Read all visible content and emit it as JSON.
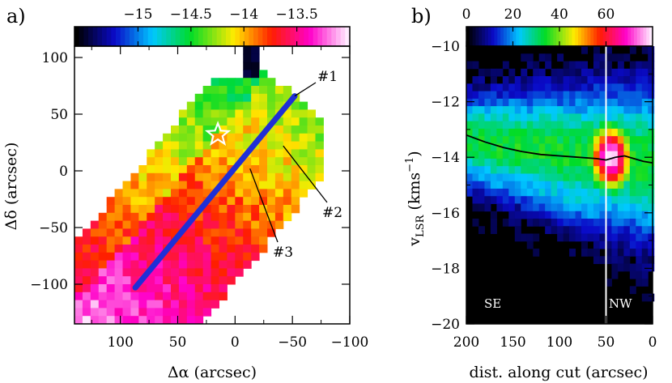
{
  "chart_data": [
    {
      "panel": "a)",
      "type": "heatmap",
      "xlabel": "Δα (arcsec)",
      "ylabel": "Δδ (arcsec)",
      "xlim": [
        140,
        -100
      ],
      "ylim": [
        -135,
        110
      ],
      "x_ticks": [
        "100",
        "50",
        "0",
        "−50",
        "−100"
      ],
      "x_tick_values": [
        100,
        50,
        0,
        -50,
        -100
      ],
      "y_ticks": [
        "100",
        "50",
        "0",
        "−50",
        "−100"
      ],
      "y_tick_values": [
        100,
        50,
        0,
        -50,
        -100
      ],
      "colorbar": {
        "ticks": [
          "−15",
          "−14.5",
          "−14",
          "−13.5"
        ],
        "tick_values": [
          -15,
          -14.5,
          -14,
          -13.5
        ],
        "range": [
          -15.6,
          -13.0
        ],
        "colormap": "black-blue-cyan-green-yellow-red-magenta-white"
      },
      "cut": {
        "start": [
          87,
          -103
        ],
        "end": [
          -52,
          66
        ],
        "color": "#1f2fd6"
      },
      "star": [
        15,
        32
      ],
      "annotations": [
        {
          "text": "#1",
          "target": [
            -52,
            66
          ]
        },
        {
          "text": "#2",
          "target": [
            -42,
            22
          ]
        },
        {
          "text": "#3",
          "target": [
            -13,
            2
          ]
        }
      ]
    },
    {
      "panel": "b)",
      "type": "heatmap",
      "xlabel": "dist. along cut (arcsec)",
      "ylabel": "vLSR (kms−1)",
      "xlim": [
        200,
        0
      ],
      "ylim": [
        -20,
        -10
      ],
      "x_ticks": [
        "200",
        "150",
        "100",
        "50",
        "0"
      ],
      "x_tick_values": [
        200,
        150,
        100,
        50,
        0
      ],
      "y_ticks": [
        "−10",
        "−12",
        "−14",
        "−16",
        "−18",
        "−20"
      ],
      "y_tick_values": [
        -10,
        -12,
        -14,
        -16,
        -18,
        -20
      ],
      "colorbar": {
        "ticks": [
          "0",
          "20",
          "40",
          "60"
        ],
        "tick_values": [
          0,
          20,
          40,
          60
        ],
        "range": [
          0,
          80
        ],
        "colormap": "black-blue-cyan-green-yellow-red-magenta-white"
      },
      "vertical_line_x": 50,
      "velocity_curve": {
        "x": [
          200,
          180,
          160,
          140,
          120,
          100,
          80,
          60,
          50,
          40,
          30,
          20,
          10,
          0
        ],
        "y": [
          -13.2,
          -13.45,
          -13.65,
          -13.8,
          -13.9,
          -13.95,
          -14.0,
          -14.05,
          -14.1,
          -14.0,
          -13.95,
          -14.05,
          -14.15,
          -14.2
        ]
      },
      "labels": {
        "se": "SE",
        "nw": "NW"
      }
    }
  ]
}
